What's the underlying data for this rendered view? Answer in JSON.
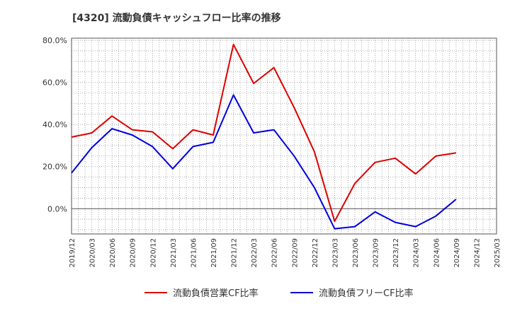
{
  "chart_data": {
    "type": "line",
    "title": "[4320]  流動負債キャッシュフロー比率の推移",
    "xlabel": "",
    "ylabel": "",
    "ylim": [
      -12,
      81
    ],
    "y_ticks": [
      0,
      20,
      40,
      60,
      80
    ],
    "y_tick_labels": [
      "0.0%",
      "20.0%",
      "40.0%",
      "60.0%",
      "80.0%"
    ],
    "x_tick_labels": [
      "2019/12",
      "2020/03",
      "2020/06",
      "2020/09",
      "2020/12",
      "2021/03",
      "2021/06",
      "2021/09",
      "2021/12",
      "2022/03",
      "2022/06",
      "2022/09",
      "2022/12",
      "2023/03",
      "2023/06",
      "2023/09",
      "2023/12",
      "2024/03",
      "2024/06",
      "2024/09",
      "2024/12",
      "2025/03"
    ],
    "grid": true,
    "legend_position": "bottom-center",
    "series": [
      {
        "name": "流動負債営業CF比率",
        "color": "#dd0000",
        "points": [
          [
            "2019/12",
            34
          ],
          [
            "2020/03",
            36
          ],
          [
            "2020/06",
            44
          ],
          [
            "2020/09",
            37.5
          ],
          [
            "2020/12",
            36.5
          ],
          [
            "2021/03",
            28.5
          ],
          [
            "2021/06",
            37.5
          ],
          [
            "2021/09",
            35
          ],
          [
            "2021/12",
            78
          ],
          [
            "2022/03",
            59.5
          ],
          [
            "2022/06",
            67
          ],
          [
            "2022/09",
            48
          ],
          [
            "2022/12",
            27
          ],
          [
            "2023/03",
            -6
          ],
          [
            "2023/06",
            12
          ],
          [
            "2023/09",
            22
          ],
          [
            "2023/12",
            24
          ],
          [
            "2024/03",
            16.5
          ],
          [
            "2024/06",
            25
          ],
          [
            "2024/09",
            26.5
          ]
        ]
      },
      {
        "name": "流動負債フリーCF比率",
        "color": "#0000dd",
        "points": [
          [
            "2019/12",
            17
          ],
          [
            "2020/03",
            29
          ],
          [
            "2020/06",
            38
          ],
          [
            "2020/09",
            35
          ],
          [
            "2020/12",
            29.5
          ],
          [
            "2021/03",
            19
          ],
          [
            "2021/06",
            29.5
          ],
          [
            "2021/09",
            31.5
          ],
          [
            "2021/12",
            54
          ],
          [
            "2022/03",
            36
          ],
          [
            "2022/06",
            37.5
          ],
          [
            "2022/09",
            25
          ],
          [
            "2022/12",
            10
          ],
          [
            "2023/03",
            -9.5
          ],
          [
            "2023/06",
            -8.5
          ],
          [
            "2023/09",
            -1.5
          ],
          [
            "2023/12",
            -6.5
          ],
          [
            "2024/03",
            -8.5
          ],
          [
            "2024/06",
            -3.5
          ],
          [
            "2024/09",
            4.5
          ]
        ]
      }
    ]
  }
}
